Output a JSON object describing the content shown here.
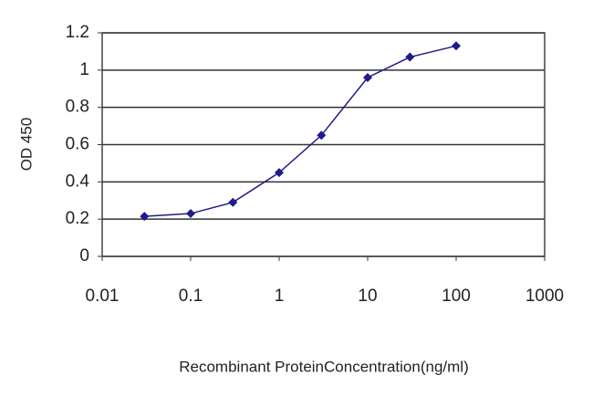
{
  "chart_data": {
    "type": "line",
    "x_label": "Recombinant ProteinConcentration(ng/ml)",
    "y_label": "OD 450",
    "x": [
      0.03,
      0.1,
      0.3,
      1,
      3,
      10,
      30,
      100
    ],
    "series": [
      {
        "color": "#1c1c8a",
        "values": [
          0.215,
          0.23,
          0.29,
          0.45,
          0.65,
          0.96,
          1.07,
          1.13
        ]
      }
    ],
    "xlim": [
      0.01,
      1000
    ],
    "xticks": [
      0.01,
      0.1,
      1,
      10,
      100,
      1000
    ],
    "xscale": "log",
    "ylim": [
      0,
      1.2
    ],
    "yticks": [
      0,
      0.2,
      0.4,
      0.6,
      0.8,
      1,
      1.2
    ],
    "grid": true
  }
}
